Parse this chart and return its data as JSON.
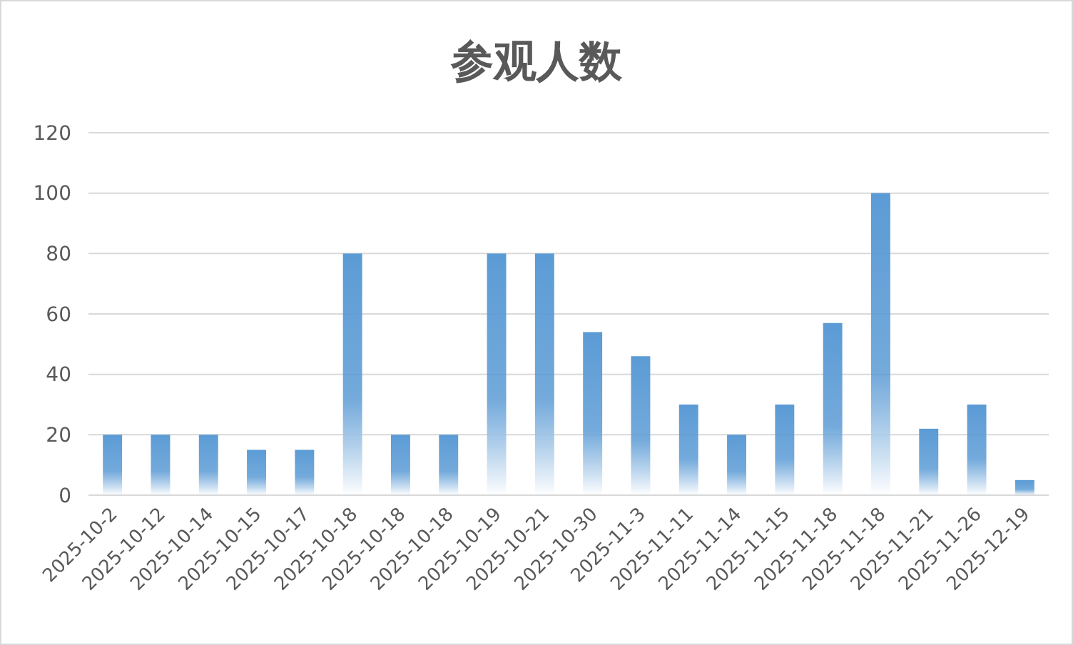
{
  "chart_data": {
    "type": "bar",
    "title": "参观人数",
    "categories": [
      "2025-10-2",
      "2025-10-12",
      "2025-10-14",
      "2025-10-15",
      "2025-10-17",
      "2025-10-18",
      "2025-10-18",
      "2025-10-18",
      "2025-10-19",
      "2025-10-21",
      "2025-10-30",
      "2025-11-3",
      "2025-11-11",
      "2025-11-14",
      "2025-11-15",
      "2025-11-18",
      "2025-11-18",
      "2025-11-21",
      "2025-11-26",
      "2025-12-19"
    ],
    "values": [
      20,
      20,
      20,
      15,
      15,
      80,
      20,
      20,
      80,
      80,
      54,
      46,
      30,
      20,
      30,
      57,
      100,
      22,
      30,
      5
    ],
    "color": "#5b9bd5",
    "ylim": [
      0,
      120
    ],
    "yticks": [
      0,
      20,
      40,
      60,
      80,
      100,
      120
    ],
    "grid": "y"
  }
}
